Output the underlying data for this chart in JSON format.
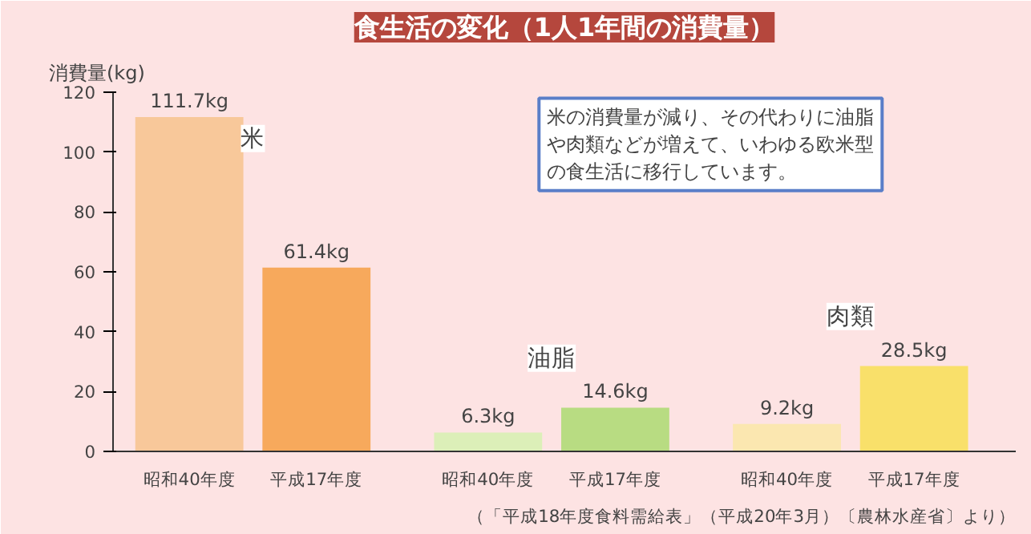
{
  "chart_data": {
    "type": "bar",
    "title": "食生活の変化（1人1年間の消費量）",
    "ylabel": "消費量(kg)",
    "categories": [
      "昭和40年度",
      "平成17年度",
      "昭和40年度",
      "平成17年度",
      "昭和40年度",
      "平成17年度"
    ],
    "values": [
      111.7,
      61.4,
      6.3,
      14.6,
      9.2,
      28.5
    ],
    "colors": [
      "#f8c89a",
      "#f7a95c",
      "#dcefb8",
      "#b8dc82",
      "#fbe7b0",
      "#f9e06a"
    ],
    "value_labels": [
      "111.7kg",
      "61.4kg",
      "6.3kg",
      "14.6kg",
      "9.2kg",
      "28.5kg"
    ],
    "ylim": [
      0,
      120
    ],
    "yticks": [
      0,
      20,
      40,
      60,
      80,
      100,
      120
    ],
    "grid": false,
    "annotations": [
      "米の消費量が減り、その代わりに油脂や肉類などが増えて、いわゆる欧米型の食生活に移行しています。",
      "米",
      "油脂",
      "肉類",
      "（「平成18年度食料需給表」（平成20年3月）〔農林水産省〕より）"
    ]
  }
}
